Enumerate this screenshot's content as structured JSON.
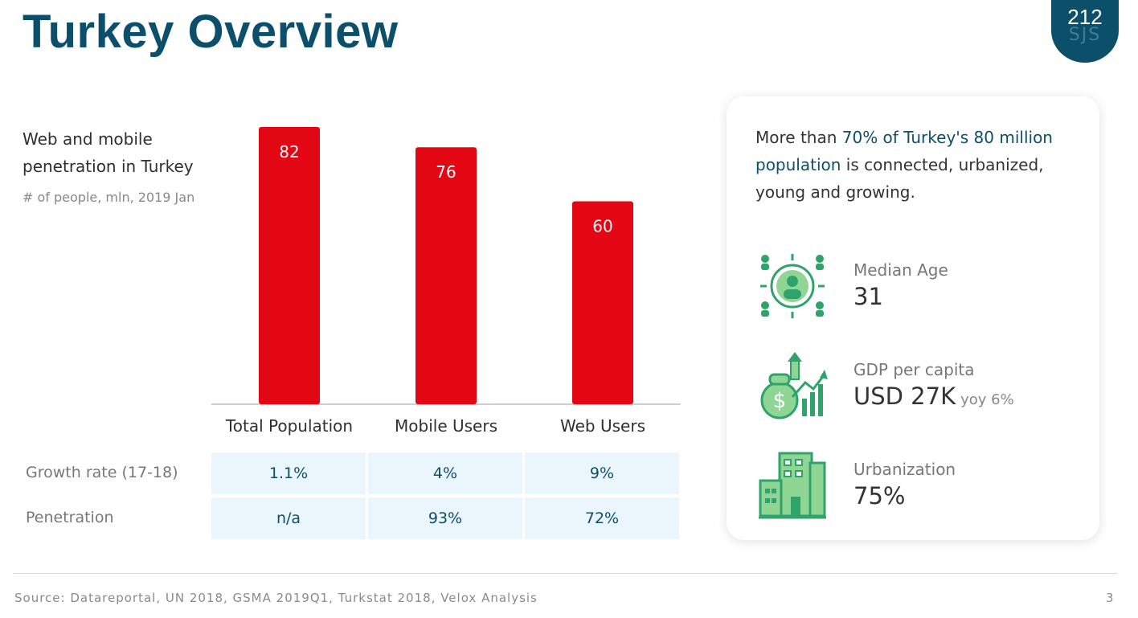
{
  "page": {
    "title": "Turkey Overview",
    "logo": {
      "number": "212",
      "letters": "SJS"
    },
    "source": "Source: Datareportal, UN 2018, GSMA 2019Q1, Turkstat 2018,  Velox Analysis",
    "page_number": "3"
  },
  "chart_data": {
    "type": "bar",
    "title": "Web and mobile penetration in Turkey",
    "subtitle": "# of people, mln, 2019 Jan",
    "categories": [
      "Total Population",
      "Mobile Users",
      "Web Users"
    ],
    "values": [
      82,
      76,
      60
    ],
    "data_labels": [
      "82",
      "76",
      "60"
    ],
    "bar_color": "#e30613",
    "ylim": [
      0,
      82
    ],
    "grid": false,
    "legend": "none"
  },
  "table": {
    "rows": [
      {
        "label": "Growth rate (17-18)",
        "values": [
          "1.1%",
          "4%",
          "9%"
        ]
      },
      {
        "label": "Penetration",
        "values": [
          "n/a",
          "93%",
          "72%"
        ]
      }
    ]
  },
  "card": {
    "text_1": "More than ",
    "highlight": "70% of Turkey's 80 million population",
    "text_2": " is connected, urbanized, young and growing.",
    "stats": [
      {
        "icon": "population-icon",
        "label": "Median Age",
        "value": "31",
        "extra": ""
      },
      {
        "icon": "gdp-growth-icon",
        "label": "GDP per capita",
        "value": "USD 27K",
        "extra": "yoy 6%"
      },
      {
        "icon": "city-buildings-icon",
        "label": "Urbanization",
        "value": "75%",
        "extra": ""
      }
    ]
  },
  "colors": {
    "brand": "#0c4f6b",
    "bar": "#e30613",
    "cell_bg": "#eaf6fb",
    "icon_green": "#2fa36b"
  }
}
